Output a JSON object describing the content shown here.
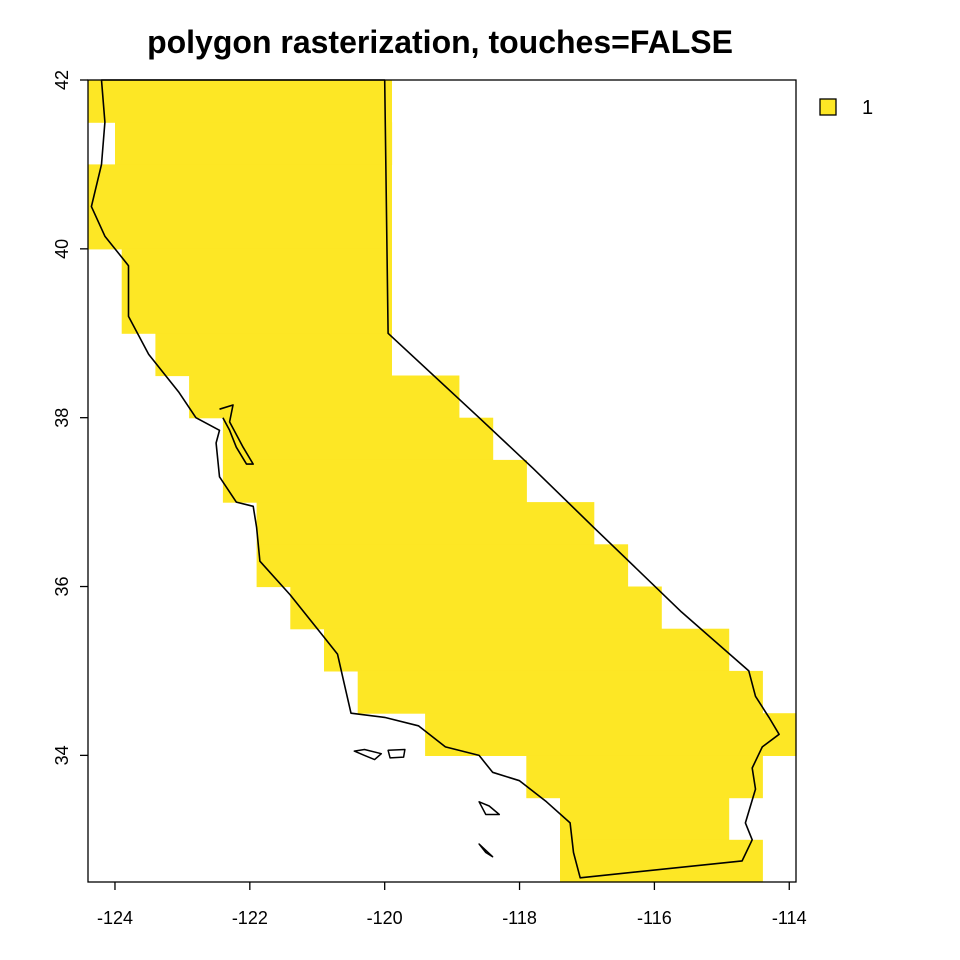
{
  "title": "polygon rasterization, touches=FALSE",
  "colors": {
    "fill": "#FDE725",
    "outline": "#000000"
  },
  "legend": {
    "entries": [
      {
        "label": "1",
        "color": "#FDE725"
      }
    ],
    "placement": "top-right"
  },
  "chart_data": {
    "type": "heatmap",
    "x_range": [
      -124.4,
      -113.9
    ],
    "y_range": [
      32.5,
      42.0
    ],
    "x_ticks": [
      -124,
      -122,
      -120,
      -118,
      -116,
      -114
    ],
    "y_ticks": [
      34,
      36,
      38,
      40,
      42
    ],
    "cell_size": 0.5,
    "raster_rows": [
      {
        "y": [
          41.5,
          42.0
        ],
        "x": [
          [
            -124.4,
            -119.9
          ]
        ]
      },
      {
        "y": [
          41.0,
          41.5
        ],
        "x": [
          [
            -124.0,
            -119.9
          ]
        ]
      },
      {
        "y": [
          40.0,
          41.0
        ],
        "x": [
          [
            -124.4,
            -119.9
          ]
        ]
      },
      {
        "y": [
          39.0,
          40.0
        ],
        "x": [
          [
            -123.9,
            -119.9
          ]
        ]
      },
      {
        "y": [
          38.5,
          39.0
        ],
        "x": [
          [
            -123.4,
            -119.9
          ]
        ]
      },
      {
        "y": [
          38.0,
          38.5
        ],
        "x": [
          [
            -122.9,
            -118.9
          ]
        ]
      },
      {
        "y": [
          37.5,
          38.0
        ],
        "x": [
          [
            -122.4,
            -118.4
          ]
        ]
      },
      {
        "y": [
          37.0,
          37.5
        ],
        "x": [
          [
            -122.4,
            -117.9
          ]
        ]
      },
      {
        "y": [
          36.5,
          37.0
        ],
        "x": [
          [
            -121.9,
            -116.9
          ]
        ]
      },
      {
        "y": [
          36.0,
          36.5
        ],
        "x": [
          [
            -121.9,
            -116.4
          ]
        ]
      },
      {
        "y": [
          35.5,
          36.0
        ],
        "x": [
          [
            -121.4,
            -115.9
          ]
        ]
      },
      {
        "y": [
          35.0,
          35.5
        ],
        "x": [
          [
            -120.9,
            -114.9
          ]
        ]
      },
      {
        "y": [
          34.5,
          35.0
        ],
        "x": [
          [
            -120.4,
            -114.4
          ]
        ]
      },
      {
        "y": [
          34.0,
          34.5
        ],
        "x": [
          [
            -119.4,
            -113.9
          ]
        ]
      },
      {
        "y": [
          33.5,
          34.0
        ],
        "x": [
          [
            -117.9,
            -114.4
          ]
        ]
      },
      {
        "y": [
          33.0,
          33.5
        ],
        "x": [
          [
            -117.4,
            -114.9
          ]
        ]
      },
      {
        "y": [
          32.5,
          33.0
        ],
        "x": [
          [
            -117.4,
            -114.4
          ]
        ]
      }
    ],
    "outline": [
      [
        -124.2,
        42.0
      ],
      [
        -120.0,
        42.0
      ],
      [
        -119.95,
        39.0
      ],
      [
        -118.6,
        38.0
      ],
      [
        -117.8,
        37.4
      ],
      [
        -116.9,
        36.7
      ],
      [
        -115.6,
        35.7
      ],
      [
        -114.6,
        35.0
      ],
      [
        -114.5,
        34.7
      ],
      [
        -114.3,
        34.45
      ],
      [
        -114.15,
        34.25
      ],
      [
        -114.4,
        34.1
      ],
      [
        -114.55,
        33.85
      ],
      [
        -114.5,
        33.6
      ],
      [
        -114.65,
        33.2
      ],
      [
        -114.55,
        33.0
      ],
      [
        -114.7,
        32.75
      ],
      [
        -117.1,
        32.55
      ],
      [
        -117.2,
        32.85
      ],
      [
        -117.25,
        33.2
      ],
      [
        -117.6,
        33.45
      ],
      [
        -118.0,
        33.7
      ],
      [
        -118.4,
        33.8
      ],
      [
        -118.6,
        34.0
      ],
      [
        -119.1,
        34.1
      ],
      [
        -119.5,
        34.35
      ],
      [
        -120.0,
        34.45
      ],
      [
        -120.5,
        34.5
      ],
      [
        -120.6,
        34.85
      ],
      [
        -120.7,
        35.2
      ],
      [
        -121.0,
        35.5
      ],
      [
        -121.4,
        35.9
      ],
      [
        -121.85,
        36.3
      ],
      [
        -121.9,
        36.7
      ],
      [
        -121.95,
        36.95
      ],
      [
        -122.2,
        37.0
      ],
      [
        -122.45,
        37.3
      ],
      [
        -122.5,
        37.7
      ],
      [
        -122.45,
        37.85
      ],
      [
        -122.8,
        38.0
      ],
      [
        -123.05,
        38.3
      ],
      [
        -123.5,
        38.75
      ],
      [
        -123.8,
        39.2
      ],
      [
        -123.8,
        39.8
      ],
      [
        -124.15,
        40.15
      ],
      [
        -124.35,
        40.5
      ],
      [
        -124.2,
        41.0
      ],
      [
        -124.15,
        41.5
      ],
      [
        -124.2,
        42.0
      ]
    ],
    "bay": [
      [
        -122.45,
        38.1
      ],
      [
        -122.25,
        38.15
      ],
      [
        -122.3,
        37.95
      ],
      [
        -122.1,
        37.65
      ],
      [
        -121.95,
        37.45
      ],
      [
        -122.05,
        37.45
      ],
      [
        -122.2,
        37.65
      ],
      [
        -122.3,
        37.85
      ],
      [
        -122.4,
        38.0
      ]
    ],
    "islands": [
      [
        [
          -120.45,
          34.05
        ],
        [
          -120.3,
          34.0
        ],
        [
          -120.15,
          33.95
        ],
        [
          -120.05,
          34.02
        ],
        [
          -120.3,
          34.07
        ]
      ],
      [
        [
          -119.95,
          34.06
        ],
        [
          -119.7,
          34.07
        ],
        [
          -119.72,
          33.98
        ],
        [
          -119.92,
          33.97
        ]
      ],
      [
        [
          -118.6,
          33.45
        ],
        [
          -118.45,
          33.4
        ],
        [
          -118.3,
          33.3
        ],
        [
          -118.5,
          33.3
        ]
      ],
      [
        [
          -118.6,
          32.95
        ],
        [
          -118.4,
          32.8
        ],
        [
          -118.5,
          32.85
        ]
      ]
    ]
  }
}
